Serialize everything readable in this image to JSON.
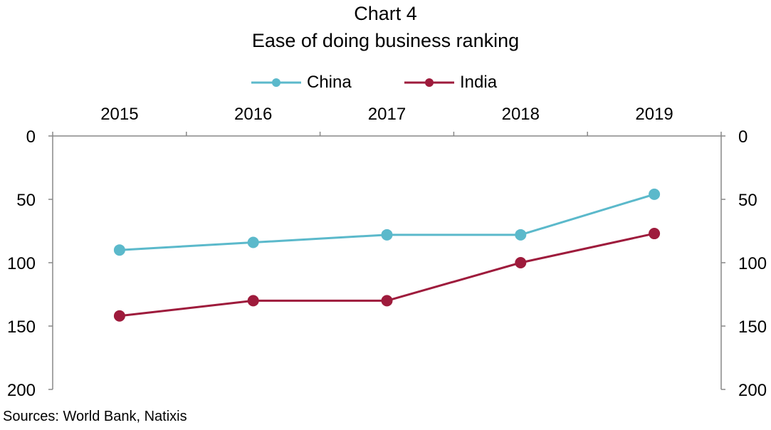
{
  "title_line1": "Chart 4",
  "title_line2": "Ease of doing business ranking",
  "source": "Sources:  World Bank,  Natixis",
  "chart_data": {
    "type": "line",
    "title": "Chart 4 Ease of doing business ranking",
    "x": [
      "2015",
      "2016",
      "2017",
      "2018",
      "2019"
    ],
    "ylim": [
      0,
      200
    ],
    "y_inverted": true,
    "y_ticks": [
      0,
      50,
      100,
      150,
      200
    ],
    "secondary_y_axis": true,
    "x_axis_position": "top",
    "legend_position": "top",
    "grid": false,
    "series": [
      {
        "name": "China",
        "color": "#5bb9cb",
        "values": [
          90,
          84,
          78,
          78,
          46
        ]
      },
      {
        "name": "India",
        "color": "#9e1b3c",
        "values": [
          142,
          130,
          130,
          100,
          77
        ]
      }
    ]
  }
}
